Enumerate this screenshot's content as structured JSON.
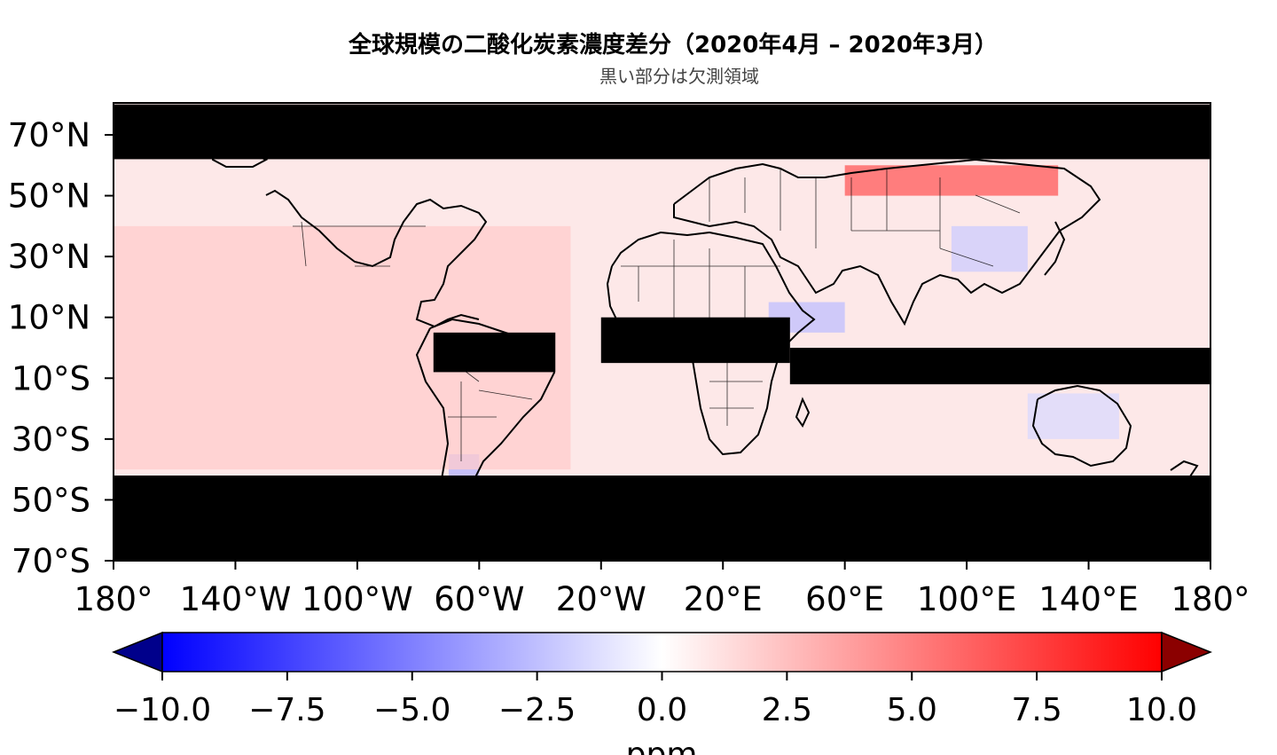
{
  "title": "全球規模の二酸化炭素濃度差分（2020年4月 – 2020年3月）",
  "subtitle": "黒い部分は欠測領域",
  "colors": {
    "missing": "#000000",
    "coast": "#000000",
    "border": "#000000"
  },
  "chart_data": {
    "type": "heatmap",
    "projection": "plate-carree",
    "title": "全球規模の二酸化炭素濃度差分（2020年4月 – 2020年3月）",
    "subtitle": "黒い部分は欠測領域",
    "lon_range": [
      -180,
      180
    ],
    "lat_range": [
      -75,
      80
    ],
    "lat_ticks": [
      {
        "value": 70,
        "label": "70°N"
      },
      {
        "value": 50,
        "label": "50°N"
      },
      {
        "value": 30,
        "label": "30°N"
      },
      {
        "value": 10,
        "label": "10°N"
      },
      {
        "value": -10,
        "label": "10°S"
      },
      {
        "value": -30,
        "label": "30°S"
      },
      {
        "value": -50,
        "label": "50°S"
      },
      {
        "value": -70,
        "label": "70°S"
      }
    ],
    "lon_ticks": [
      {
        "value": -180,
        "label": "180°"
      },
      {
        "value": -140,
        "label": "140°W"
      },
      {
        "value": -100,
        "label": "100°W"
      },
      {
        "value": -60,
        "label": "60°W"
      },
      {
        "value": -20,
        "label": "20°W"
      },
      {
        "value": 20,
        "label": "20°E"
      },
      {
        "value": 60,
        "label": "60°E"
      },
      {
        "value": 100,
        "label": "100°E"
      },
      {
        "value": 140,
        "label": "140°E"
      },
      {
        "value": 180,
        "label": "180°"
      }
    ],
    "missing_regions": [
      {
        "name": "north-polar",
        "lon": [
          -180,
          180
        ],
        "lat": [
          62,
          80
        ]
      },
      {
        "name": "southern-ocean",
        "lon": [
          -180,
          180
        ],
        "lat": [
          -75,
          -42
        ]
      },
      {
        "name": "amazon",
        "lon": [
          -75,
          -35
        ],
        "lat": [
          -8,
          5
        ]
      },
      {
        "name": "central-africa",
        "lon": [
          -20,
          42
        ],
        "lat": [
          -5,
          10
        ]
      },
      {
        "name": "indian-ocean",
        "lon": [
          42,
          180
        ],
        "lat": [
          -12,
          0
        ]
      }
    ],
    "anomaly_regions": [
      {
        "name": "siberia",
        "lon": [
          60,
          130
        ],
        "lat": [
          50,
          60
        ],
        "value": 6.5
      },
      {
        "name": "arabia",
        "lon": [
          35,
          60
        ],
        "lat": [
          5,
          15
        ],
        "value": -2.5
      },
      {
        "name": "china",
        "lon": [
          95,
          120
        ],
        "lat": [
          25,
          40
        ],
        "value": -2.0
      },
      {
        "name": "patagonia",
        "lon": [
          -70,
          -60
        ],
        "lat": [
          -50,
          -35
        ],
        "value": -3.0
      },
      {
        "name": "australia",
        "lon": [
          120,
          150
        ],
        "lat": [
          -30,
          -15
        ],
        "value": -1.5
      },
      {
        "name": "mid-pacific",
        "lon": [
          -180,
          -30
        ],
        "lat": [
          -40,
          40
        ],
        "value": 2.0
      }
    ],
    "colorbar": {
      "vmin": -10.0,
      "vmax": 10.0,
      "extend": "both",
      "label": "ppm",
      "ticks": [
        "−10.0",
        "−7.5",
        "−5.0",
        "−2.5",
        "0.0",
        "2.5",
        "5.0",
        "7.5",
        "10.0"
      ],
      "tick_values": [
        -10,
        -7.5,
        -5,
        -2.5,
        0,
        2.5,
        5,
        7.5,
        10
      ],
      "cmap": "bwr"
    }
  }
}
